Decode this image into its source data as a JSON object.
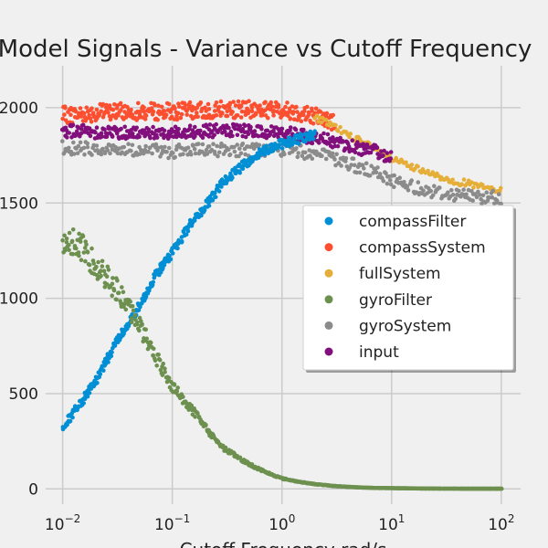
{
  "chart_data": {
    "type": "scatter",
    "title": "Model Signals - Variance vs Cutoff Frequency",
    "xlabel": "Cutoff Frequency rad/s",
    "ylabel": "",
    "xscale": "log",
    "xlim": [
      0.007,
      150
    ],
    "ylim": [
      -80,
      2220
    ],
    "x_ticks": [
      0.01,
      0.1,
      1,
      10,
      100
    ],
    "x_tick_labels": [
      {
        "base": "10",
        "exp": "−2"
      },
      {
        "base": "10",
        "exp": "−1"
      },
      {
        "base": "10",
        "exp": "0"
      },
      {
        "base": "10",
        "exp": "1"
      },
      {
        "base": "10",
        "exp": "2"
      }
    ],
    "y_ticks": [
      0,
      500,
      1000,
      1500,
      2000
    ],
    "y_tick_labels": [
      "0",
      "500",
      "1000",
      "1500",
      "2000"
    ],
    "grid": true,
    "legend_position": "center-right",
    "series": [
      {
        "name": "compassFilter",
        "color": "#008fd5",
        "x": [
          0.01,
          0.02,
          0.03,
          0.05,
          0.07,
          0.1,
          0.15,
          0.2,
          0.3,
          0.5,
          0.7,
          1,
          1.5,
          2
        ],
        "values": [
          320,
          560,
          760,
          960,
          1120,
          1240,
          1400,
          1480,
          1620,
          1720,
          1780,
          1810,
          1840,
          1860
        ]
      },
      {
        "name": "compassSystem",
        "color": "#fc4f30",
        "x": [
          0.01,
          0.03,
          0.1,
          0.3,
          1,
          2,
          3
        ],
        "values": [
          1960,
          1980,
          1980,
          1990,
          1990,
          1960,
          1920
        ]
      },
      {
        "name": "fullSystem",
        "color": "#e5ae38",
        "x": [
          2,
          3,
          5,
          7,
          10,
          15,
          20,
          30,
          50,
          70,
          100
        ],
        "values": [
          1950,
          1900,
          1830,
          1780,
          1730,
          1690,
          1660,
          1630,
          1600,
          1580,
          1560
        ]
      },
      {
        "name": "gyroFilter",
        "color": "#6d904f",
        "x": [
          0.01,
          0.015,
          0.02,
          0.03,
          0.05,
          0.07,
          0.1,
          0.15,
          0.2,
          0.3,
          0.5,
          0.7,
          1,
          1.5,
          2,
          3,
          5,
          7,
          10,
          20,
          50,
          100
        ],
        "values": [
          1320,
          1260,
          1180,
          1060,
          860,
          700,
          540,
          420,
          320,
          210,
          130,
          90,
          55,
          35,
          25,
          15,
          8,
          5,
          4,
          2,
          1,
          1
        ]
      },
      {
        "name": "gyroSystem",
        "color": "#8b8b8b",
        "x": [
          0.01,
          0.03,
          0.1,
          0.3,
          1,
          2,
          3,
          5,
          7,
          10,
          15,
          20,
          30,
          50,
          70,
          100
        ],
        "values": [
          1790,
          1780,
          1770,
          1780,
          1780,
          1760,
          1730,
          1690,
          1660,
          1620,
          1590,
          1570,
          1550,
          1540,
          1530,
          1530
        ]
      },
      {
        "name": "input",
        "color": "#810f7c",
        "x": [
          0.01,
          0.03,
          0.1,
          0.3,
          1,
          2,
          3,
          5,
          7,
          10
        ],
        "values": [
          1880,
          1870,
          1870,
          1880,
          1870,
          1840,
          1820,
          1790,
          1770,
          1740
        ]
      }
    ]
  }
}
